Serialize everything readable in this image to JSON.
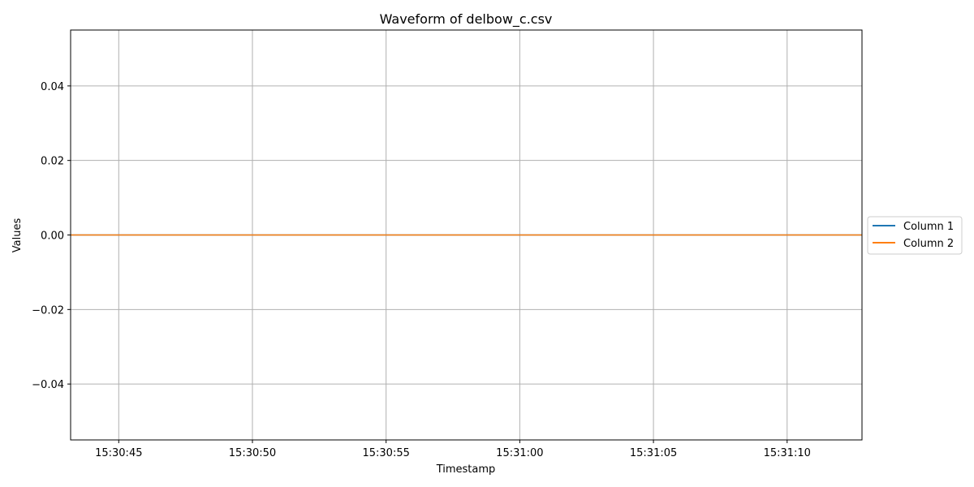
{
  "chart_data": {
    "type": "line",
    "title": "Waveform of delbow_c.csv",
    "xlabel": "Timestamp",
    "ylabel": "Values",
    "x_axis_type": "time",
    "x_range": [
      "15:30:43.2",
      "15:31:12.8"
    ],
    "x_ticks": [
      "15:30:45",
      "15:30:50",
      "15:30:55",
      "15:31:00",
      "15:31:05",
      "15:31:10"
    ],
    "ylim": [
      -0.055,
      0.055
    ],
    "y_ticks": [
      -0.04,
      -0.02,
      0.0,
      0.02,
      0.04
    ],
    "y_tick_labels": [
      "−0.04",
      "−0.02",
      "0.00",
      "0.02",
      "0.04"
    ],
    "grid": true,
    "legend_position": "center-right-outside",
    "series": [
      {
        "name": "Column 1",
        "color": "#1f77b4",
        "x": [
          "15:30:44.2",
          "15:31:13.8"
        ],
        "y": [
          0.0,
          0.0
        ]
      },
      {
        "name": "Column 2",
        "color": "#ff7f0e",
        "x": [
          "15:30:44.2",
          "15:31:13.8"
        ],
        "y": [
          0.0,
          0.0
        ]
      }
    ]
  }
}
